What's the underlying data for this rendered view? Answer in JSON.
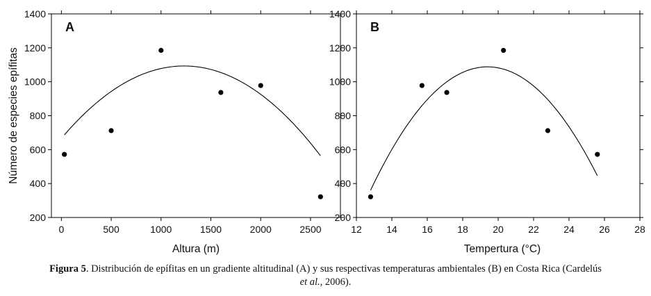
{
  "chart_data": [
    {
      "type": "scatter",
      "panel_label": "A",
      "xlabel": "Altura (m)",
      "ylabel": "Número de especies epífitas",
      "xlim": [
        -100,
        2800
      ],
      "ylim": [
        200,
        1400
      ],
      "xticks": [
        0,
        500,
        1000,
        1500,
        2000,
        2500
      ],
      "yticks": [
        200,
        400,
        600,
        800,
        1000,
        1200,
        1400
      ],
      "points": [
        {
          "x": 30,
          "y": 572
        },
        {
          "x": 500,
          "y": 712
        },
        {
          "x": 1000,
          "y": 1185
        },
        {
          "x": 1600,
          "y": 937
        },
        {
          "x": 2000,
          "y": 978
        },
        {
          "x": 2600,
          "y": 322
        }
      ],
      "curve": {
        "type": "quadratic",
        "vertex_x": 1230,
        "vertex_y": 1093,
        "a": -0.000282,
        "x_from": 30,
        "x_to": 2600
      },
      "grid": false
    },
    {
      "type": "scatter",
      "panel_label": "B",
      "xlabel": "Tempertura (°C)",
      "ylabel": "",
      "xlim": [
        12,
        28
      ],
      "ylim": [
        200,
        1400
      ],
      "xticks": [
        12,
        14,
        16,
        18,
        20,
        22,
        24,
        26,
        28
      ],
      "yticks": [
        200,
        400,
        600,
        800,
        1000,
        1200,
        1400
      ],
      "points": [
        {
          "x": 12.8,
          "y": 322
        },
        {
          "x": 15.7,
          "y": 978
        },
        {
          "x": 17.1,
          "y": 937
        },
        {
          "x": 20.3,
          "y": 1185
        },
        {
          "x": 22.8,
          "y": 712
        },
        {
          "x": 25.6,
          "y": 572
        }
      ],
      "curve": {
        "type": "quadratic",
        "vertex_x": 19.4,
        "vertex_y": 1088,
        "a": -16.7,
        "x_from": 12.8,
        "x_to": 25.6
      },
      "grid": false
    }
  ],
  "caption": {
    "label": "Figura 5",
    "text": ". Distribución de epífitas en un gradiente altitudinal (A) y sus respectivas temperaturas ambientales (B) en Costa Rica (Cardelús",
    "authors_italic": "et al.",
    "tail": ", 2006)."
  }
}
